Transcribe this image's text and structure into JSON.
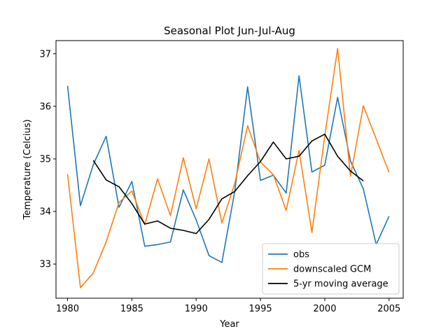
{
  "chart_data": {
    "type": "line",
    "title": "Seasonal Plot Jun-Jul-Aug",
    "xlabel": "Year",
    "ylabel": "Temperature (Celcius)",
    "xlim": [
      1979.1,
      2006.1
    ],
    "ylim": [
      32.35,
      37.25
    ],
    "xticks": [
      1980,
      1985,
      1990,
      1995,
      2000,
      2005
    ],
    "yticks": [
      33,
      34,
      35,
      36,
      37
    ],
    "grid": false,
    "legend_position": "lower-right",
    "series": [
      {
        "name": "obs",
        "color": "#1f77b4",
        "x": [
          1980,
          1981,
          1982,
          1983,
          1984,
          1985,
          1986,
          1987,
          1988,
          1989,
          1990,
          1991,
          1992,
          1993,
          1994,
          1995,
          1996,
          1997,
          1998,
          1999,
          2000,
          2001,
          2002,
          2003,
          2004,
          2005
        ],
        "values": [
          36.39,
          34.11,
          34.89,
          35.43,
          34.08,
          34.57,
          33.34,
          33.37,
          33.42,
          34.41,
          33.84,
          33.16,
          33.03,
          34.38,
          36.37,
          34.59,
          34.69,
          34.35,
          36.58,
          34.75,
          34.88,
          36.17,
          34.96,
          34.43,
          33.37,
          33.91
        ]
      },
      {
        "name": "downscaled GCM",
        "color": "#ff7f0e",
        "x": [
          1980,
          1981,
          1982,
          1983,
          1984,
          1985,
          1986,
          1987,
          1988,
          1989,
          1990,
          1991,
          1992,
          1993,
          1994,
          1995,
          1996,
          1997,
          1998,
          1999,
          2000,
          2001,
          2002,
          2003,
          2004,
          2005
        ],
        "values": [
          34.71,
          32.55,
          32.83,
          33.42,
          34.17,
          34.39,
          33.75,
          34.62,
          33.92,
          35.02,
          34.05,
          35.0,
          33.78,
          34.53,
          35.63,
          34.94,
          34.7,
          34.02,
          35.16,
          33.6,
          35.44,
          37.1,
          34.67,
          36.01,
          35.38,
          34.74
        ]
      },
      {
        "name": "5-yr moving average",
        "color": "#000000",
        "x": [
          1982,
          1983,
          1984,
          1985,
          1986,
          1987,
          1988,
          1989,
          1990,
          1991,
          1992,
          1993,
          1994,
          1995,
          1996,
          1997,
          1998,
          1999,
          2000,
          2001,
          2002,
          2003
        ],
        "values": [
          34.97,
          34.6,
          34.47,
          34.15,
          33.76,
          33.82,
          33.68,
          33.64,
          33.58,
          33.85,
          34.24,
          34.38,
          34.68,
          34.95,
          35.32,
          35.0,
          35.05,
          35.34,
          35.47,
          35.05,
          34.77,
          34.58
        ]
      }
    ]
  }
}
